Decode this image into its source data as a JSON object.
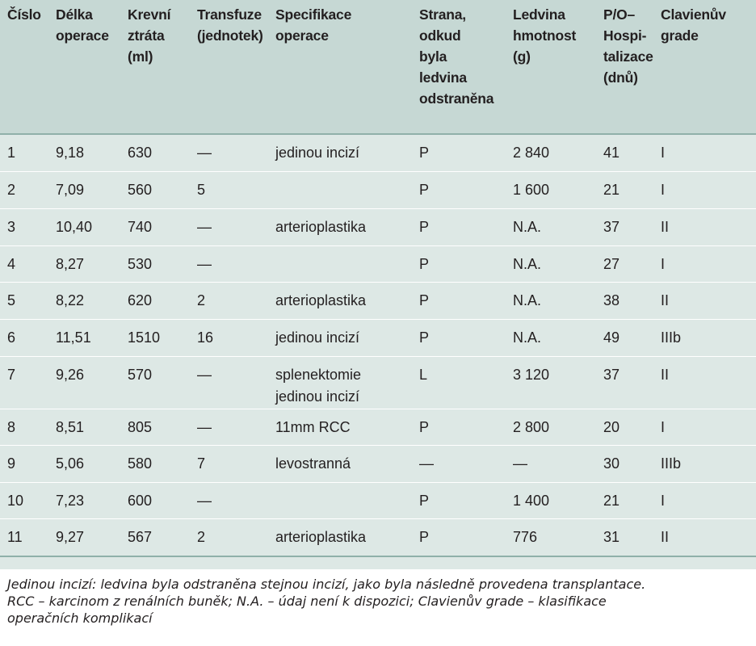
{
  "table": {
    "headers": [
      [
        "Číslo"
      ],
      [
        "Délka",
        "operace"
      ],
      [
        "Krevní",
        "ztráta",
        "(ml)"
      ],
      [
        "Transfuze",
        "(jednotek)"
      ],
      [
        "Specifikace",
        "operace"
      ],
      [
        "Strana,",
        "odkud",
        "byla",
        "ledvina",
        "odstraněna"
      ],
      [
        "Ledvina",
        "hmotnost",
        "(g)"
      ],
      [
        "P/O–",
        "Hospi-",
        "talizace",
        "(dnů)"
      ],
      [
        "Clavienův",
        "grade"
      ]
    ],
    "rows": [
      [
        [
          "1"
        ],
        [
          "9,18"
        ],
        [
          "630"
        ],
        [
          "—"
        ],
        [
          "jedinou incizí"
        ],
        [
          "P"
        ],
        [
          "2 840"
        ],
        [
          "41"
        ],
        [
          "I"
        ]
      ],
      [
        [
          "2"
        ],
        [
          "7,09"
        ],
        [
          "560"
        ],
        [
          "5"
        ],
        [
          ""
        ],
        [
          "P"
        ],
        [
          "1 600"
        ],
        [
          "21"
        ],
        [
          "I"
        ]
      ],
      [
        [
          "3"
        ],
        [
          "10,40"
        ],
        [
          "740"
        ],
        [
          "—"
        ],
        [
          "arterioplastika"
        ],
        [
          "P"
        ],
        [
          "N.A."
        ],
        [
          "37"
        ],
        [
          "II"
        ]
      ],
      [
        [
          "4"
        ],
        [
          "8,27"
        ],
        [
          "530"
        ],
        [
          "—"
        ],
        [
          ""
        ],
        [
          "P"
        ],
        [
          "N.A."
        ],
        [
          "27"
        ],
        [
          "I"
        ]
      ],
      [
        [
          "5"
        ],
        [
          "8,22"
        ],
        [
          "620"
        ],
        [
          "2"
        ],
        [
          "arterioplastika"
        ],
        [
          "P"
        ],
        [
          "N.A."
        ],
        [
          "38"
        ],
        [
          "II"
        ]
      ],
      [
        [
          "6"
        ],
        [
          "11,51"
        ],
        [
          "1510"
        ],
        [
          "16"
        ],
        [
          "jedinou incizí"
        ],
        [
          "P"
        ],
        [
          "N.A."
        ],
        [
          "49"
        ],
        [
          "IIIb"
        ]
      ],
      [
        [
          "7"
        ],
        [
          "9,26"
        ],
        [
          "570"
        ],
        [
          "—"
        ],
        [
          "splenektomie",
          "jedinou incizí"
        ],
        [
          "L"
        ],
        [
          "3 120"
        ],
        [
          "37"
        ],
        [
          "II"
        ]
      ],
      [
        [
          "8"
        ],
        [
          "8,51"
        ],
        [
          "805"
        ],
        [
          "—"
        ],
        [
          "11mm RCC"
        ],
        [
          "P"
        ],
        [
          "2 800"
        ],
        [
          "20"
        ],
        [
          "I"
        ]
      ],
      [
        [
          "9"
        ],
        [
          "5,06"
        ],
        [
          "580"
        ],
        [
          "7"
        ],
        [
          "levostranná"
        ],
        [
          "—"
        ],
        [
          "—"
        ],
        [
          "30"
        ],
        [
          "IIIb"
        ]
      ],
      [
        [
          "10"
        ],
        [
          "7,23"
        ],
        [
          "600"
        ],
        [
          "—"
        ],
        [
          ""
        ],
        [
          "P"
        ],
        [
          "1 400"
        ],
        [
          "21"
        ],
        [
          "I"
        ]
      ],
      [
        [
          "11"
        ],
        [
          "9,27"
        ],
        [
          "567"
        ],
        [
          "2"
        ],
        [
          "arterioplastika"
        ],
        [
          "P"
        ],
        [
          "776"
        ],
        [
          "31"
        ],
        [
          "II"
        ]
      ]
    ]
  },
  "footnote": {
    "lines": [
      "Jedinou incizí: ledvina byla odstraněna stejnou incizí, jako byla následně provedena transplantace.",
      "RCC – karcinom z renálních buněk; N.A. – údaj není k dispozici; Clavienův grade – klasifikace",
      "operačních komplikací"
    ]
  },
  "colors": {
    "header_bg": "#c6d8d4",
    "body_bg": "#dde8e5",
    "rule": "#8fb0a9",
    "text": "#231f20"
  }
}
